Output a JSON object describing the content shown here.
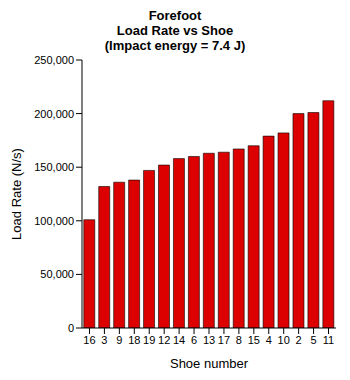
{
  "chart_data": {
    "type": "bar",
    "title": "Forefoot\nLoad Rate vs Shoe\n(Impact energy = 7.4 J)",
    "x_label": "Shoe number",
    "y_label": "Load Rate (N/s)",
    "categories": [
      "16",
      "3",
      "9",
      "18",
      "19",
      "12",
      "14",
      "6",
      "13",
      "17",
      "8",
      "15",
      "4",
      "10",
      "2",
      "5",
      "11"
    ],
    "values": [
      101000,
      132000,
      136000,
      138000,
      147000,
      152000,
      158000,
      160000,
      163000,
      164000,
      167000,
      170000,
      179000,
      182000,
      200000,
      201000,
      212000
    ],
    "color": "#dd0000",
    "ylim": [
      0,
      250000
    ],
    "yticks": [
      0,
      {
        "value": 50000,
        "label": "50,000"
      },
      {
        "value": 100000,
        "label": "100,000"
      },
      {
        "value": 150000,
        "label": "150,000"
      },
      {
        "value": 200000,
        "label": "200,000"
      },
      {
        "value": 250000,
        "label": "250,000"
      }
    ],
    "grid": false
  }
}
